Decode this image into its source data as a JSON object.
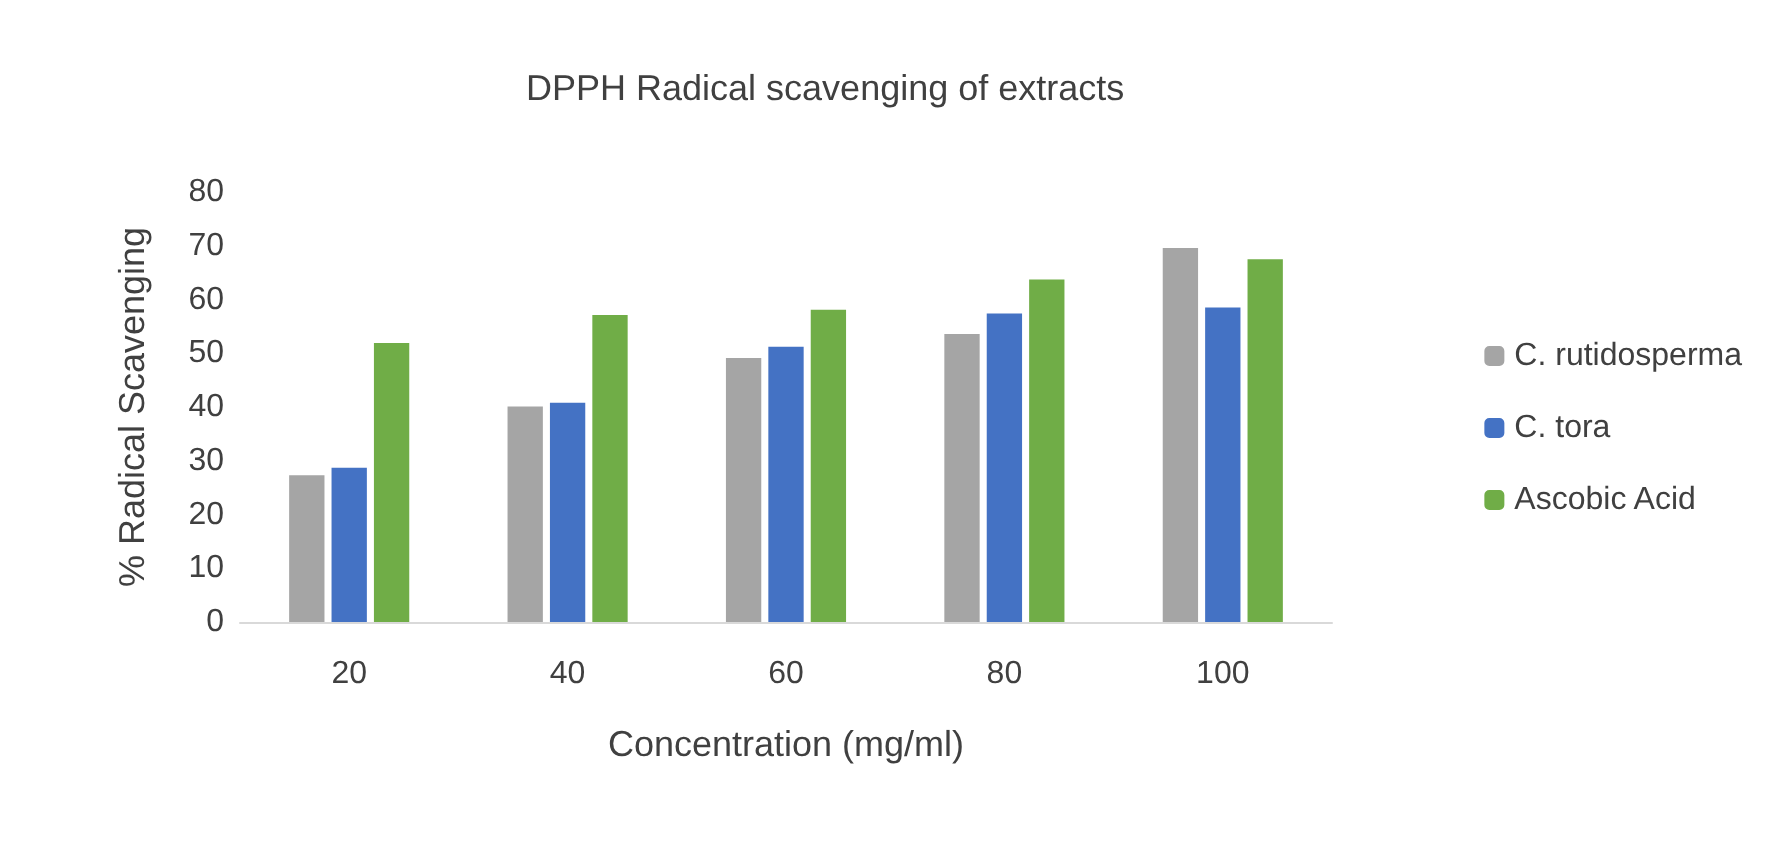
{
  "chart_data": {
    "type": "bar",
    "title": "DPPH Radical scavenging of extracts",
    "xlabel": "Concentration (mg/ml)",
    "ylabel": "% Radical Scavenging",
    "categories": [
      "20",
      "40",
      "60",
      "80",
      "100"
    ],
    "series": [
      {
        "name": "C. rutidosperma",
        "color": "#a5a5a5",
        "values": [
          27.3,
          40.1,
          49.1,
          53.6,
          69.6
        ]
      },
      {
        "name": "C. tora",
        "color": "#4472c4",
        "values": [
          28.7,
          40.8,
          51.2,
          57.4,
          58.5
        ]
      },
      {
        "name": "Ascobic Acid",
        "color": "#70ad47",
        "values": [
          51.9,
          57.1,
          58.1,
          63.7,
          67.5
        ]
      }
    ],
    "ylim": [
      0,
      80
    ],
    "yticks": [
      0,
      10,
      20,
      30,
      40,
      50,
      60,
      70,
      80
    ],
    "grid": false,
    "legend": "right"
  }
}
